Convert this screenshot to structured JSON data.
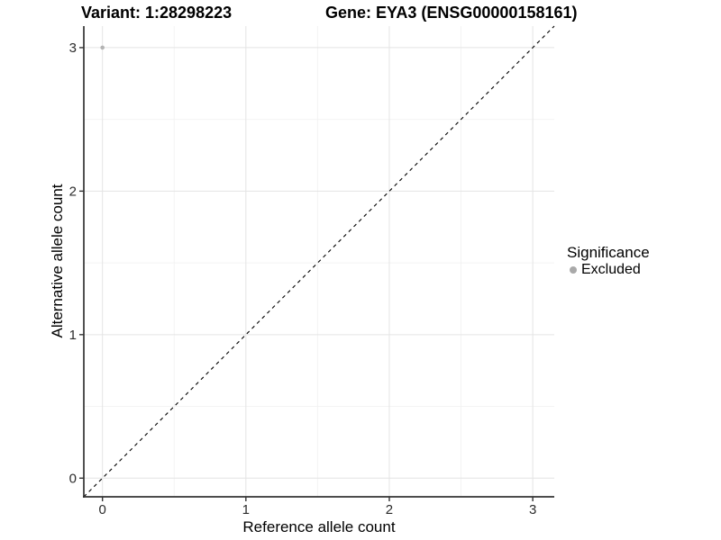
{
  "header": {
    "variant_title": "Variant: 1:28298223",
    "gene_title": "Gene: EYA3 (ENSG00000158161)"
  },
  "axes": {
    "x_label": "Reference allele count",
    "y_label": "Alternative allele count"
  },
  "legend": {
    "title": "Significance",
    "items": [
      {
        "label": "Excluded",
        "color": "#a9a9a9",
        "marker": "dot-icon"
      }
    ]
  },
  "colors": {
    "background": "#ffffff",
    "grid_major": "#e4e4e4",
    "grid_minor": "#f2f2f2",
    "axis_line": "#333333",
    "tick_mark": "#333333",
    "tick_text": "#2b2b2b",
    "title_text": "#000000",
    "reference_line": "#000000",
    "point": "#b3b3b3"
  },
  "chart_data": {
    "type": "scatter",
    "title": "Variant: 1:28298223    Gene: EYA3 (ENSG00000158161)",
    "xlabel": "Reference allele count",
    "ylabel": "Alternative allele count",
    "xlim": [
      -0.13,
      3.15
    ],
    "ylim": [
      -0.13,
      3.15
    ],
    "x_ticks": [
      0,
      1,
      2,
      3
    ],
    "y_ticks": [
      0,
      1,
      2,
      3
    ],
    "x_minor_ticks": [
      0.5,
      1.5,
      2.5
    ],
    "y_minor_ticks": [
      0.5,
      1.5,
      2.5
    ],
    "grid": true,
    "legend_position": "right",
    "legend_title": "Significance",
    "reference_line": {
      "kind": "identity",
      "style": "dashed",
      "from": [
        -0.13,
        -0.13
      ],
      "to": [
        3.15,
        3.15
      ]
    },
    "series": [
      {
        "name": "Excluded",
        "color": "#b3b3b3",
        "points": [
          {
            "x": 0,
            "y": 3
          }
        ]
      }
    ]
  }
}
